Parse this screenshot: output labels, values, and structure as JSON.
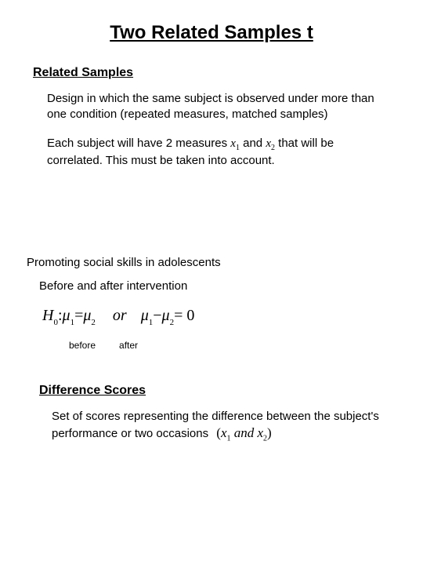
{
  "title": "Two Related Samples t",
  "sec1_head": "Related Samples",
  "sec1_p1": "Design in which the same subject is observed under more than one condition (repeated measures, matched samples)",
  "sec1_p2a": "Each subject will have 2 measures ",
  "sec1_p2b": " and ",
  "sec1_p2c": " that will be correlated.  This must be taken into account.",
  "var_x1_letter": "x",
  "var_x1_sub": "1",
  "var_x2_letter": "x",
  "var_x2_sub": "2",
  "example_head": "Promoting social skills in adolescents",
  "example_sub": "Before and after intervention",
  "eq": {
    "H_letter": "H",
    "H_sub": "0",
    "colon": " : ",
    "mu": "μ",
    "mu1_sub": "1",
    "eq_sign": " = ",
    "mu2_sub": "2",
    "or": "or",
    "minus": " − ",
    "eq0": " = 0"
  },
  "label_before": "before",
  "label_after": "after",
  "sec2_head": "Difference Scores",
  "sec2_p": "Set of scores representing the difference between the subject's performance or two occasions ",
  "paren_open": "(",
  "paren_and": " and ",
  "paren_close": ")"
}
